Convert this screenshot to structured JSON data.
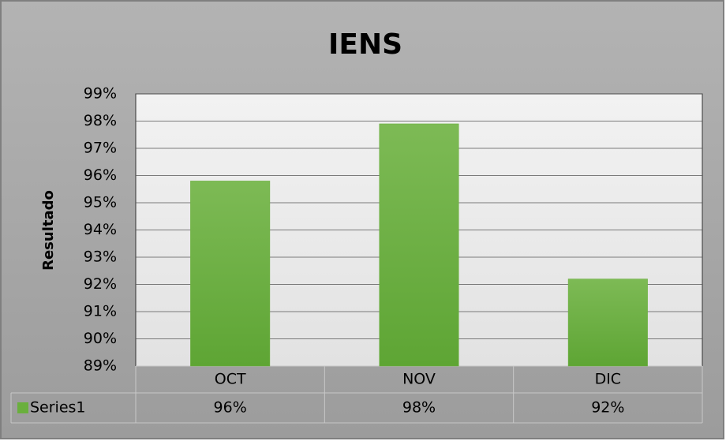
{
  "chart_data": {
    "type": "bar",
    "title": "IENS",
    "y_label": "Resultado",
    "categories": [
      "OCT",
      "NOV",
      "DIC"
    ],
    "series": [
      {
        "name": "Series1",
        "color": "#6aaf3d",
        "values": [
          95.8,
          97.9,
          92.2
        ],
        "value_labels": [
          "96%",
          "98%",
          "92%"
        ]
      }
    ],
    "ylim": [
      89,
      99
    ],
    "yticks": [
      {
        "value": 89,
        "label": "89%"
      },
      {
        "value": 90,
        "label": "90%"
      },
      {
        "value": 91,
        "label": "91%"
      },
      {
        "value": 92,
        "label": "92%"
      },
      {
        "value": 93,
        "label": "93%"
      },
      {
        "value": 94,
        "label": "94%"
      },
      {
        "value": 95,
        "label": "95%"
      },
      {
        "value": 96,
        "label": "96%"
      },
      {
        "value": 97,
        "label": "97%"
      },
      {
        "value": 98,
        "label": "98%"
      },
      {
        "value": 99,
        "label": "99%"
      }
    ],
    "grid": true,
    "data_table": true
  }
}
